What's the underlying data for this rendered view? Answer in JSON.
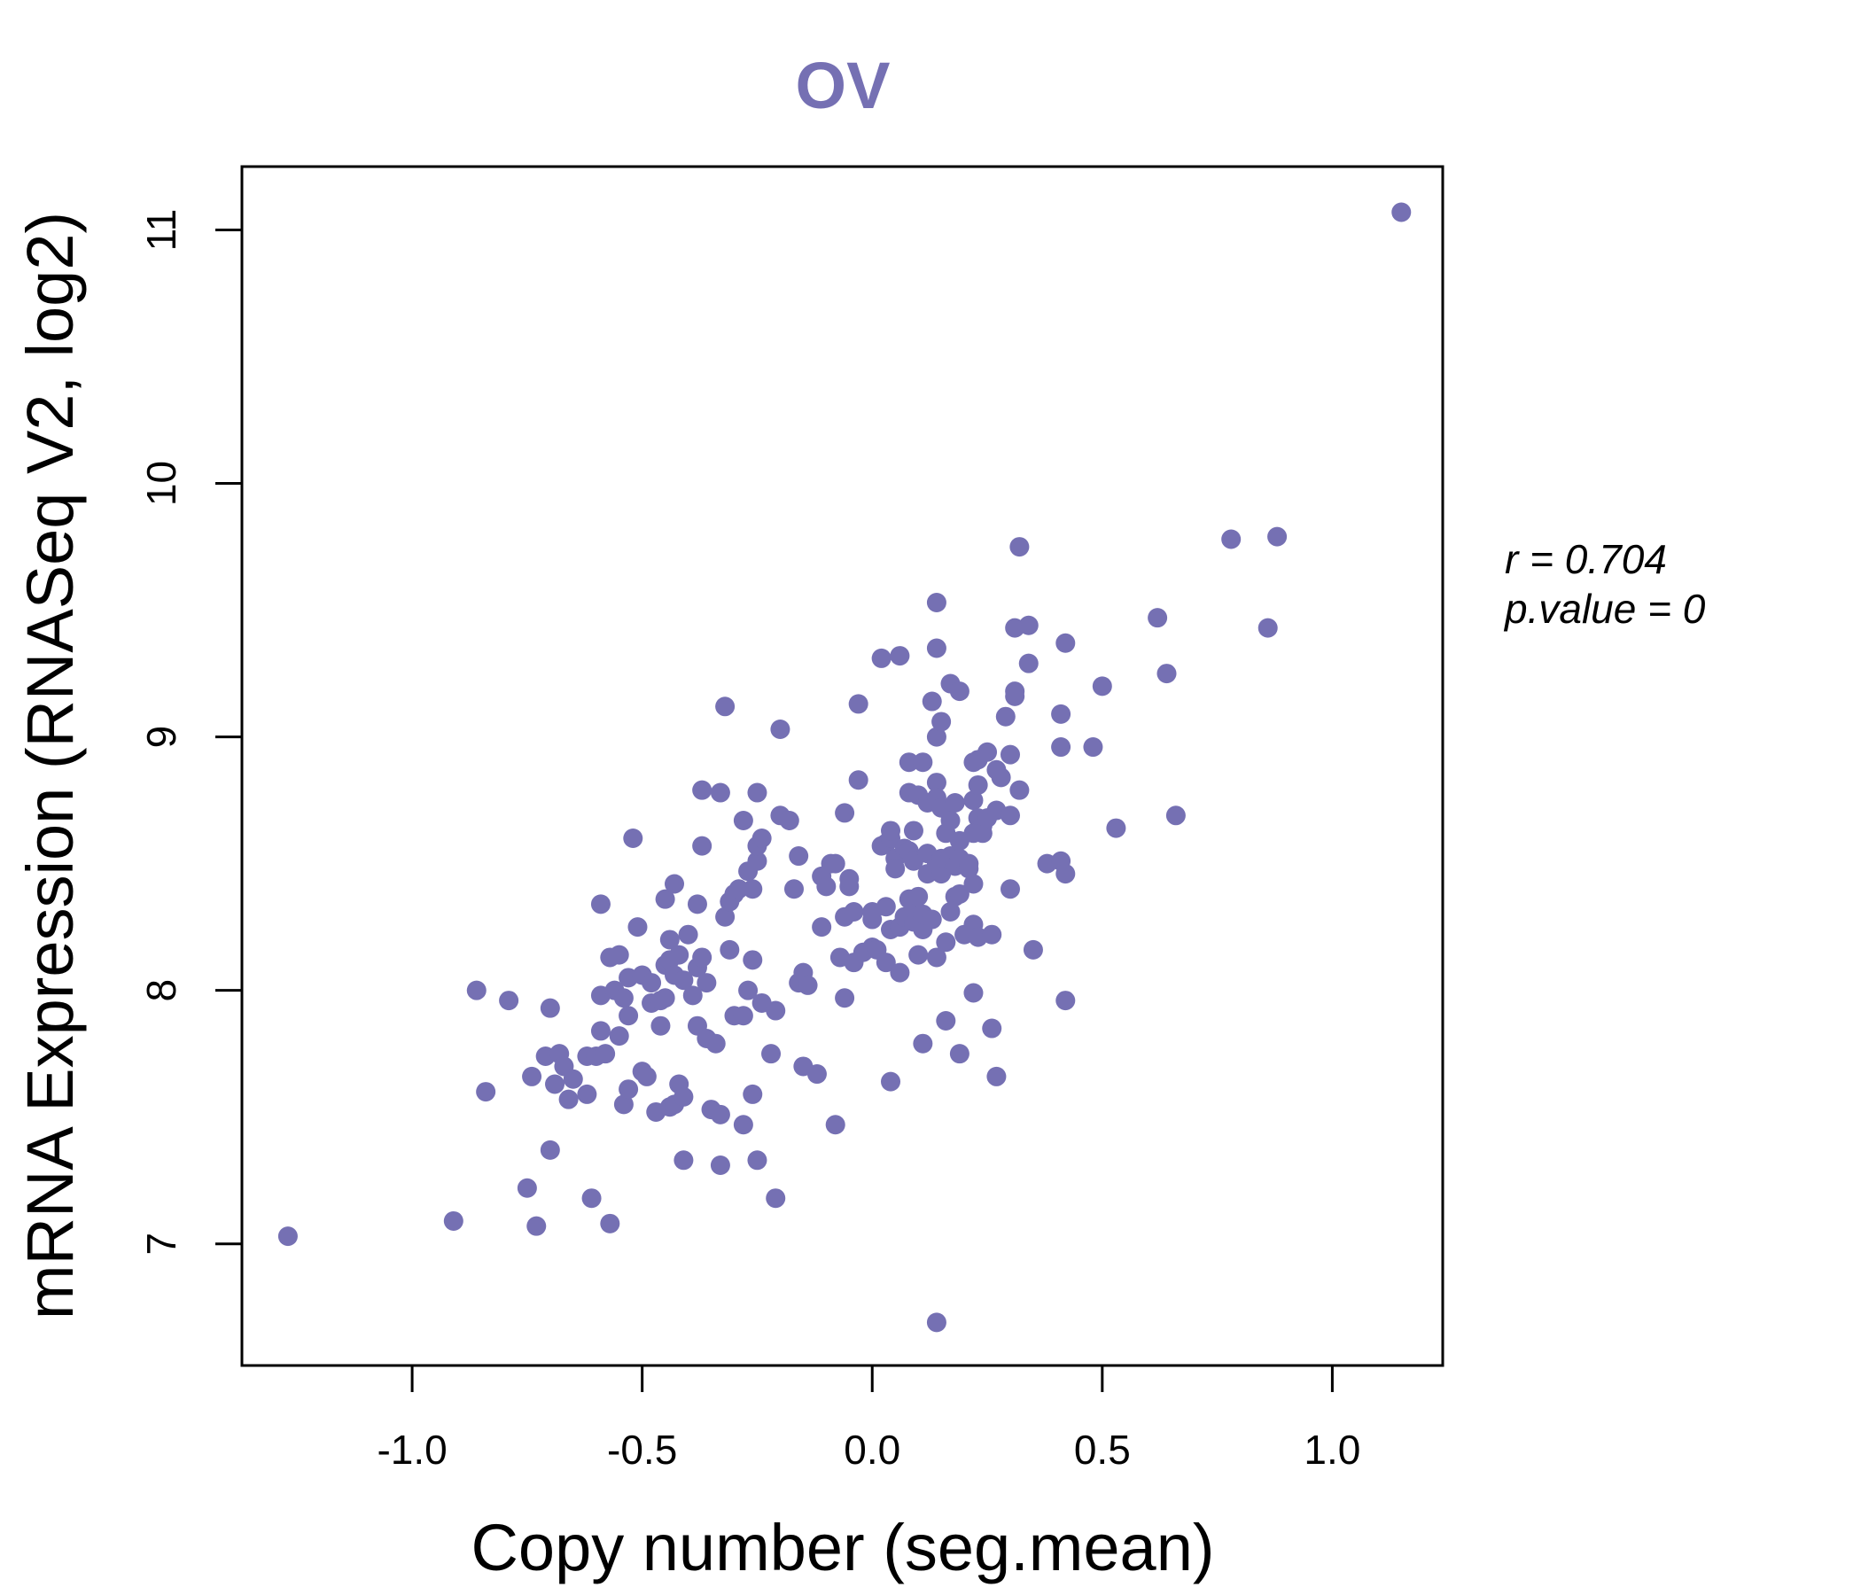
{
  "colors": {
    "point": "#7570b3",
    "title": "#7570b3",
    "axis": "#000000"
  },
  "chart_data": {
    "type": "scatter",
    "title": "OV",
    "xlabel": "Copy number (seg.mean)",
    "ylabel": "mRNA Expression (RNASeq V2, log2)",
    "xlim": [
      -1.37,
      1.24
    ],
    "ylim": [
      6.52,
      11.25
    ],
    "xticks": [
      -1.0,
      -0.5,
      0.0,
      0.5,
      1.0
    ],
    "xtick_labels": [
      "-1.0",
      "-0.5",
      "0.0",
      "0.5",
      "1.0"
    ],
    "yticks": [
      7,
      8,
      9,
      10,
      11
    ],
    "ytick_labels": [
      "7",
      "8",
      "9",
      "10",
      "11"
    ],
    "annotation": {
      "r_label": "r = 0.704",
      "p_label": "p.value = 0"
    },
    "points": [
      [
        -1.27,
        7.03
      ],
      [
        -0.91,
        7.09
      ],
      [
        -0.86,
        8.0
      ],
      [
        -0.84,
        7.6
      ],
      [
        -0.79,
        7.96
      ],
      [
        -0.75,
        7.22
      ],
      [
        -0.74,
        7.66
      ],
      [
        -0.73,
        7.07
      ],
      [
        -0.71,
        7.74
      ],
      [
        -0.7,
        7.93
      ],
      [
        -0.7,
        7.37
      ],
      [
        -0.69,
        7.63
      ],
      [
        -0.68,
        7.75
      ],
      [
        -0.67,
        7.7
      ],
      [
        -0.66,
        7.57
      ],
      [
        -0.65,
        7.65
      ],
      [
        -0.62,
        7.59
      ],
      [
        -0.62,
        7.74
      ],
      [
        -0.61,
        7.18
      ],
      [
        -0.6,
        7.74
      ],
      [
        -0.59,
        8.34
      ],
      [
        -0.59,
        7.84
      ],
      [
        -0.59,
        7.98
      ],
      [
        -0.58,
        7.75
      ],
      [
        -0.57,
        8.13
      ],
      [
        -0.57,
        7.08
      ],
      [
        -0.56,
        8.0
      ],
      [
        -0.55,
        8.14
      ],
      [
        -0.55,
        7.82
      ],
      [
        -0.54,
        7.55
      ],
      [
        -0.54,
        7.97
      ],
      [
        -0.53,
        7.61
      ],
      [
        -0.53,
        7.9
      ],
      [
        -0.53,
        8.05
      ],
      [
        -0.52,
        8.6
      ],
      [
        -0.51,
        8.25
      ],
      [
        -0.5,
        7.68
      ],
      [
        -0.5,
        8.06
      ],
      [
        -0.49,
        7.66
      ],
      [
        -0.48,
        8.03
      ],
      [
        -0.48,
        7.95
      ],
      [
        -0.47,
        7.52
      ],
      [
        -0.46,
        7.86
      ],
      [
        -0.46,
        7.96
      ],
      [
        -0.45,
        7.97
      ],
      [
        -0.45,
        8.1
      ],
      [
        -0.45,
        8.36
      ],
      [
        -0.44,
        7.54
      ],
      [
        -0.44,
        8.2
      ],
      [
        -0.44,
        8.12
      ],
      [
        -0.43,
        8.06
      ],
      [
        -0.43,
        8.42
      ],
      [
        -0.43,
        7.55
      ],
      [
        -0.42,
        7.63
      ],
      [
        -0.42,
        8.14
      ],
      [
        -0.41,
        7.58
      ],
      [
        -0.41,
        7.33
      ],
      [
        -0.41,
        8.04
      ],
      [
        -0.4,
        8.22
      ],
      [
        -0.39,
        7.98
      ],
      [
        -0.38,
        8.09
      ],
      [
        -0.38,
        8.34
      ],
      [
        -0.38,
        7.86
      ],
      [
        -0.37,
        8.79
      ],
      [
        -0.37,
        8.57
      ],
      [
        -0.37,
        8.13
      ],
      [
        -0.36,
        8.03
      ],
      [
        -0.36,
        7.81
      ],
      [
        -0.35,
        7.53
      ],
      [
        -0.34,
        7.79
      ],
      [
        -0.33,
        8.78
      ],
      [
        -0.33,
        7.31
      ],
      [
        -0.33,
        7.51
      ],
      [
        -0.32,
        8.29
      ],
      [
        -0.32,
        9.12
      ],
      [
        -0.31,
        8.35
      ],
      [
        -0.31,
        8.16
      ],
      [
        -0.3,
        8.38
      ],
      [
        -0.3,
        7.9
      ],
      [
        -0.29,
        8.4
      ],
      [
        -0.28,
        7.47
      ],
      [
        -0.28,
        7.9
      ],
      [
        -0.28,
        8.67
      ],
      [
        -0.27,
        8.47
      ],
      [
        -0.27,
        8.0
      ],
      [
        -0.26,
        8.4
      ],
      [
        -0.26,
        8.12
      ],
      [
        -0.26,
        7.59
      ],
      [
        -0.25,
        8.78
      ],
      [
        -0.25,
        7.33
      ],
      [
        -0.25,
        8.51
      ],
      [
        -0.25,
        8.57
      ],
      [
        -0.24,
        8.6
      ],
      [
        -0.24,
        7.95
      ],
      [
        -0.22,
        7.75
      ],
      [
        -0.21,
        7.18
      ],
      [
        -0.21,
        7.92
      ],
      [
        -0.2,
        8.69
      ],
      [
        -0.2,
        9.03
      ],
      [
        -0.18,
        8.67
      ],
      [
        -0.17,
        8.4
      ],
      [
        -0.16,
        8.03
      ],
      [
        -0.16,
        8.53
      ],
      [
        -0.15,
        7.7
      ],
      [
        -0.15,
        8.07
      ],
      [
        -0.14,
        8.02
      ],
      [
        -0.12,
        7.67
      ],
      [
        -0.11,
        8.45
      ],
      [
        -0.11,
        8.25
      ],
      [
        -0.1,
        8.41
      ],
      [
        -0.09,
        8.5
      ],
      [
        -0.08,
        7.47
      ],
      [
        -0.08,
        8.5
      ],
      [
        -0.07,
        8.13
      ],
      [
        -0.06,
        8.7
      ],
      [
        -0.06,
        7.97
      ],
      [
        -0.06,
        8.29
      ],
      [
        -0.05,
        8.41
      ],
      [
        -0.05,
        8.44
      ],
      [
        -0.04,
        8.11
      ],
      [
        -0.04,
        8.31
      ],
      [
        -0.03,
        9.13
      ],
      [
        -0.03,
        8.83
      ],
      [
        -0.02,
        8.15
      ],
      [
        0.0,
        8.17
      ],
      [
        0.0,
        8.28
      ],
      [
        0.0,
        8.31
      ],
      [
        0.01,
        8.16
      ],
      [
        0.02,
        9.31
      ],
      [
        0.02,
        8.57
      ],
      [
        0.03,
        8.11
      ],
      [
        0.03,
        8.33
      ],
      [
        0.03,
        8.58
      ],
      [
        0.04,
        7.64
      ],
      [
        0.04,
        8.24
      ],
      [
        0.04,
        8.6
      ],
      [
        0.04,
        8.63
      ],
      [
        0.05,
        8.52
      ],
      [
        0.05,
        8.48
      ],
      [
        0.06,
        8.25
      ],
      [
        0.06,
        9.32
      ],
      [
        0.06,
        8.07
      ],
      [
        0.07,
        8.29
      ],
      [
        0.07,
        8.56
      ],
      [
        0.08,
        8.55
      ],
      [
        0.08,
        8.9
      ],
      [
        0.08,
        8.36
      ],
      [
        0.08,
        8.78
      ],
      [
        0.09,
        8.27
      ],
      [
        0.09,
        8.32
      ],
      [
        0.09,
        8.51
      ],
      [
        0.09,
        8.63
      ],
      [
        0.1,
        8.37
      ],
      [
        0.1,
        8.14
      ],
      [
        0.1,
        8.77
      ],
      [
        0.11,
        8.24
      ],
      [
        0.11,
        8.3
      ],
      [
        0.11,
        8.9
      ],
      [
        0.11,
        7.79
      ],
      [
        0.12,
        8.74
      ],
      [
        0.12,
        8.46
      ],
      [
        0.12,
        8.54
      ],
      [
        0.13,
        9.14
      ],
      [
        0.13,
        8.28
      ],
      [
        0.14,
        9.35
      ],
      [
        0.14,
        9.0
      ],
      [
        0.14,
        8.82
      ],
      [
        0.14,
        8.76
      ],
      [
        0.14,
        8.5
      ],
      [
        0.14,
        9.53
      ],
      [
        0.14,
        8.13
      ],
      [
        0.14,
        6.69
      ],
      [
        0.15,
        9.06
      ],
      [
        0.15,
        8.46
      ],
      [
        0.15,
        8.72
      ],
      [
        0.15,
        8.52
      ],
      [
        0.16,
        7.88
      ],
      [
        0.16,
        8.19
      ],
      [
        0.16,
        8.62
      ],
      [
        0.17,
        9.21
      ],
      [
        0.17,
        8.67
      ],
      [
        0.17,
        8.31
      ],
      [
        0.17,
        8.53
      ],
      [
        0.18,
        8.37
      ],
      [
        0.18,
        8.49
      ],
      [
        0.18,
        8.74
      ],
      [
        0.19,
        8.59
      ],
      [
        0.19,
        9.18
      ],
      [
        0.19,
        8.52
      ],
      [
        0.19,
        8.38
      ],
      [
        0.19,
        7.75
      ],
      [
        0.2,
        8.22
      ],
      [
        0.21,
        8.5
      ],
      [
        0.21,
        8.48
      ],
      [
        0.22,
        8.9
      ],
      [
        0.22,
        8.42
      ],
      [
        0.22,
        8.62
      ],
      [
        0.22,
        8.75
      ],
      [
        0.22,
        8.26
      ],
      [
        0.22,
        7.99
      ],
      [
        0.23,
        8.91
      ],
      [
        0.23,
        8.81
      ],
      [
        0.23,
        8.68
      ],
      [
        0.23,
        8.21
      ],
      [
        0.24,
        8.65
      ],
      [
        0.24,
        8.62
      ],
      [
        0.25,
        8.68
      ],
      [
        0.25,
        8.94
      ],
      [
        0.26,
        8.22
      ],
      [
        0.26,
        7.85
      ],
      [
        0.27,
        8.87
      ],
      [
        0.27,
        8.71
      ],
      [
        0.27,
        7.66
      ],
      [
        0.28,
        8.84
      ],
      [
        0.29,
        9.08
      ],
      [
        0.3,
        8.93
      ],
      [
        0.3,
        8.4
      ],
      [
        0.3,
        8.69
      ],
      [
        0.31,
        9.18
      ],
      [
        0.31,
        9.16
      ],
      [
        0.31,
        9.43
      ],
      [
        0.32,
        9.75
      ],
      [
        0.32,
        8.79
      ],
      [
        0.34,
        9.29
      ],
      [
        0.34,
        9.44
      ],
      [
        0.35,
        8.16
      ],
      [
        0.38,
        8.5
      ],
      [
        0.41,
        8.51
      ],
      [
        0.41,
        8.96
      ],
      [
        0.41,
        9.09
      ],
      [
        0.42,
        9.37
      ],
      [
        0.42,
        8.46
      ],
      [
        0.42,
        7.96
      ],
      [
        0.48,
        8.96
      ],
      [
        0.5,
        9.2
      ],
      [
        0.53,
        8.64
      ],
      [
        0.62,
        9.47
      ],
      [
        0.64,
        9.25
      ],
      [
        0.66,
        8.69
      ],
      [
        0.78,
        9.78
      ],
      [
        0.86,
        9.43
      ],
      [
        0.88,
        9.79
      ],
      [
        1.15,
        11.07
      ]
    ]
  }
}
